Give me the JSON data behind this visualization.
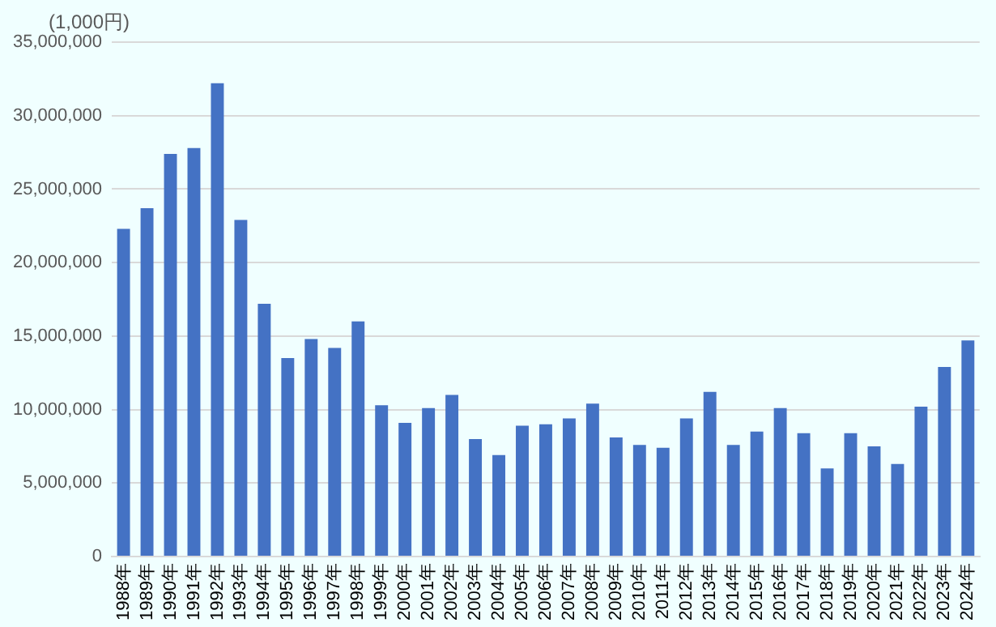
{
  "chart_data": {
    "type": "bar",
    "ylabel": "(1,000円)",
    "categories": [
      "1988年",
      "1989年",
      "1990年",
      "1991年",
      "1992年",
      "1993年",
      "1994年",
      "1995年",
      "1996年",
      "1997年",
      "1998年",
      "1999年",
      "2000年",
      "2001年",
      "2002年",
      "2003年",
      "2004年",
      "2005年",
      "2006年",
      "2007年",
      "2008年",
      "2009年",
      "2010年",
      "2011年",
      "2012年",
      "2013年",
      "2014年",
      "2015年",
      "2016年",
      "2017年",
      "2018年",
      "2019年",
      "2020年",
      "2021年",
      "2022年",
      "2023年",
      "2024年"
    ],
    "values": [
      22300000,
      23700000,
      27400000,
      27800000,
      32200000,
      22900000,
      17200000,
      13500000,
      14800000,
      14200000,
      16000000,
      10300000,
      9100000,
      10100000,
      11000000,
      8000000,
      6900000,
      8900000,
      9000000,
      9400000,
      10400000,
      8100000,
      7600000,
      7400000,
      9400000,
      11200000,
      7600000,
      8500000,
      10100000,
      8400000,
      6000000,
      8400000,
      7500000,
      6300000,
      10200000,
      12900000,
      14700000
    ],
    "color": "#4472c4",
    "ylim": [
      0,
      35000000
    ],
    "yticks": [
      0,
      {
        "value": 5000000,
        "label": "5,000,000"
      },
      {
        "value": 10000000,
        "label": "10,000,000"
      },
      {
        "value": 15000000,
        "label": "15,000,000"
      },
      {
        "value": 20000000,
        "label": "20,000,000"
      },
      {
        "value": 25000000,
        "label": "25,000,000"
      },
      {
        "value": 30000000,
        "label": "30,000,000"
      },
      {
        "value": 35000000,
        "label": "35,000,000"
      }
    ],
    "grid": "y",
    "legend": false
  }
}
